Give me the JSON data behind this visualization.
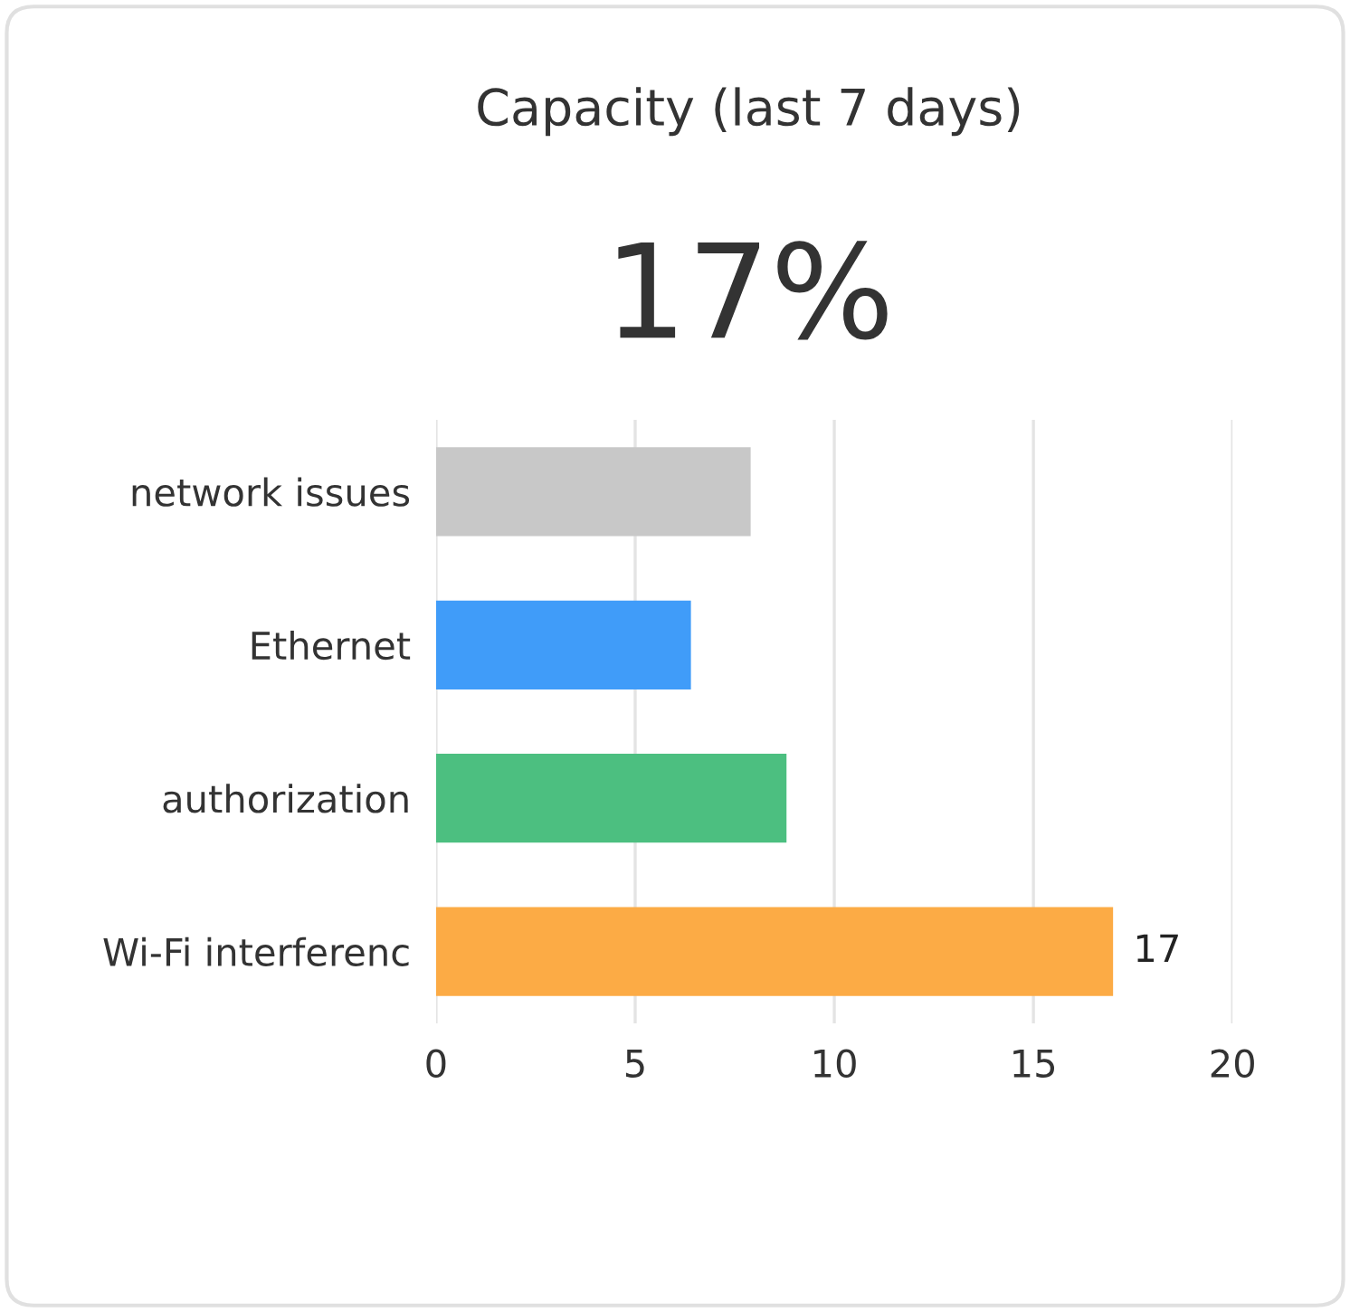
{
  "chart_data": {
    "type": "bar",
    "orientation": "horizontal",
    "title": "Capacity (last 7 days)",
    "annotations": [
      "17%"
    ],
    "categories": [
      "network issues",
      "Ethernet",
      "authorization",
      "Wi-Fi interferenc"
    ],
    "values": [
      7.9,
      6.4,
      8.8,
      17
    ],
    "colors": [
      "#c8c8c8",
      "#409cf9",
      "#4cbf80",
      "#fcab45"
    ],
    "value_labels": [
      null,
      null,
      null,
      "17"
    ],
    "xlim": [
      0,
      20
    ],
    "xticks": [
      0,
      5,
      10,
      15,
      20
    ],
    "grid": "x"
  }
}
